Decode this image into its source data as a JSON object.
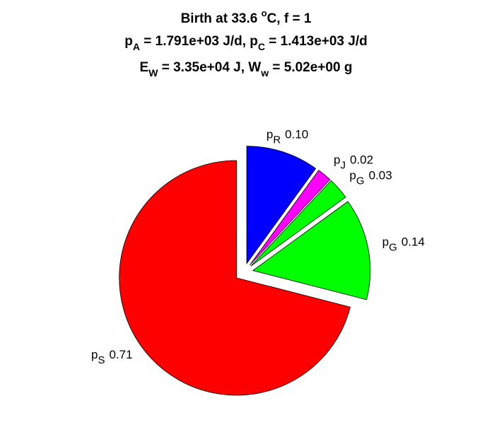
{
  "chart_data": {
    "type": "pie",
    "title": [
      [
        "Birth at 33.6 ",
        "o",
        "C, f = 1"
      ],
      [
        "p",
        "A",
        " = 1.791e+03 J/d, p",
        "C",
        " = 1.413e+03 J/d"
      ],
      [
        "E",
        "W",
        " = 3.35e+04 J, W",
        "w",
        " = 5.02e+00 g"
      ]
    ],
    "categories": [
      {
        "symbol": "p",
        "subscript": "S"
      },
      {
        "symbol": "p",
        "subscript": "G"
      },
      {
        "symbol": "p",
        "subscript": "G"
      },
      {
        "symbol": "p",
        "subscript": "J"
      },
      {
        "symbol": "p",
        "subscript": "R"
      }
    ],
    "values": [
      0.71,
      0.14,
      0.03,
      0.02,
      0.1
    ],
    "value_labels": [
      "0.71",
      "0.14",
      "0.03",
      "0.02",
      "0.10"
    ],
    "colors": [
      "#ff0000",
      "#00ff00",
      "#00ff00",
      "#ff00ff",
      "#0000ff"
    ],
    "explode": true
  }
}
